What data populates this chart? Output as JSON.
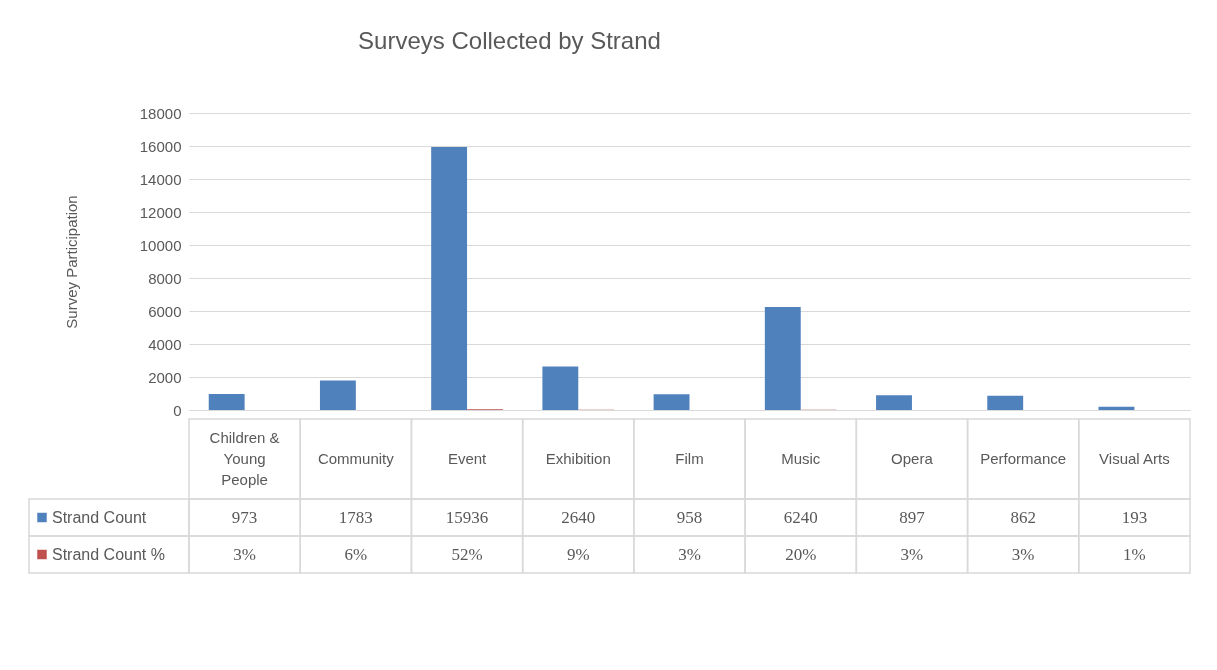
{
  "chart_data": {
    "type": "bar",
    "title": "Surveys Collected by Strand",
    "ylabel": "Survey Participation",
    "categories": [
      "Children & Young People",
      "Community",
      "Event",
      "Exhibition",
      "Film",
      "Music",
      "Opera",
      "Performance",
      "Visual Arts"
    ],
    "series": [
      {
        "name": "Strand Count",
        "color": "#4f81bd",
        "values": [
          973,
          1783,
          15936,
          2640,
          958,
          6240,
          897,
          862,
          193
        ],
        "value_labels": [
          "973",
          "1783",
          "15936",
          "2640",
          "958",
          "6240",
          "897",
          "862",
          "193"
        ]
      },
      {
        "name": "Strand Count %",
        "color": "#c0504d",
        "values": [
          3,
          6,
          52,
          9,
          3,
          20,
          3,
          3,
          1
        ],
        "value_labels": [
          "3%",
          "6%",
          "52%",
          "9%",
          "3%",
          "20%",
          "3%",
          "3%",
          "1%"
        ]
      }
    ],
    "ylim": [
      0,
      18000
    ],
    "yticks": [
      0,
      2000,
      4000,
      6000,
      8000,
      10000,
      12000,
      14000,
      16000,
      18000
    ],
    "grid": true,
    "legend": "bottom left"
  }
}
